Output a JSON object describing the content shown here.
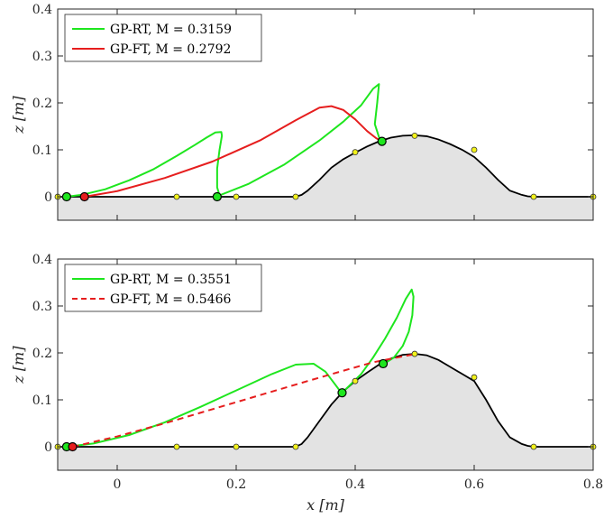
{
  "chart_data": [
    {
      "type": "line",
      "xlim": [
        -0.1,
        0.8
      ],
      "ylim": [
        -0.05,
        0.4
      ],
      "xticks": [],
      "yticks": [
        0,
        0.1,
        0.2,
        0.3,
        0.4
      ],
      "ytick_labels": [
        "0",
        "0.1",
        "0.2",
        "0.3",
        "0.4"
      ],
      "ylabel": "z [m]",
      "xlabel": "",
      "grid": false,
      "legend_position": "top-left",
      "terrain": {
        "x": [
          -0.1,
          0.3,
          0.31,
          0.32,
          0.34,
          0.36,
          0.38,
          0.4,
          0.42,
          0.44,
          0.46,
          0.48,
          0.5,
          0.52,
          0.54,
          0.56,
          0.58,
          0.6,
          0.62,
          0.64,
          0.66,
          0.68,
          0.69,
          0.7,
          0.8
        ],
        "y": [
          0,
          0,
          0.004,
          0.013,
          0.036,
          0.062,
          0.08,
          0.094,
          0.107,
          0.118,
          0.126,
          0.13,
          0.131,
          0.129,
          0.122,
          0.112,
          0.1,
          0.085,
          0.062,
          0.036,
          0.013,
          0.004,
          0.001,
          0,
          0
        ],
        "fill_color": "#e3e3e3",
        "line_color": "#000000",
        "knots_x": [
          -0.1,
          0.1,
          0.2,
          0.3,
          0.4,
          0.5,
          0.6,
          0.7,
          0.8
        ],
        "knots_y": [
          0,
          0,
          0,
          0,
          0.095,
          0.13,
          0.1,
          0,
          0
        ],
        "knot_color": "#f2f21a"
      },
      "series": [
        {
          "name": "GP-RT",
          "M_label": "M = 0.3159",
          "color": "#1ee61e",
          "dash": false,
          "x": [
            -0.085,
            -0.06,
            -0.02,
            0.02,
            0.06,
            0.1,
            0.13,
            0.15,
            0.165,
            0.175,
            0.176,
            0.172,
            0.168,
            0.168,
            0.172,
            0.22,
            0.28,
            0.34,
            0.38,
            0.41,
            0.43,
            0.44,
            0.437,
            0.433,
            0.44,
            0.445
          ],
          "y": [
            0,
            0.004,
            0.016,
            0.035,
            0.058,
            0.087,
            0.11,
            0.126,
            0.137,
            0.138,
            0.13,
            0.1,
            0.06,
            0.02,
            0.003,
            0.027,
            0.068,
            0.12,
            0.16,
            0.195,
            0.23,
            0.24,
            0.2,
            0.155,
            0.127,
            0.118
          ],
          "markers": [
            {
              "x": -0.085,
              "y": 0
            },
            {
              "x": 0.168,
              "y": 0
            },
            {
              "x": 0.445,
              "y": 0.118
            }
          ]
        },
        {
          "name": "GP-FT",
          "M_label": "M = 0.2792",
          "color": "#e61e1e",
          "dash": false,
          "x": [
            -0.055,
            0.0,
            0.08,
            0.16,
            0.24,
            0.3,
            0.34,
            0.36,
            0.38,
            0.4,
            0.42,
            0.435,
            0.445
          ],
          "y": [
            0,
            0.012,
            0.04,
            0.075,
            0.12,
            0.163,
            0.19,
            0.193,
            0.185,
            0.165,
            0.14,
            0.125,
            0.118
          ],
          "markers": [
            {
              "x": -0.055,
              "y": 0
            }
          ]
        }
      ]
    },
    {
      "type": "line",
      "xlim": [
        -0.1,
        0.8
      ],
      "ylim": [
        -0.05,
        0.4
      ],
      "xticks": [
        0,
        0.2,
        0.4,
        0.6,
        0.8
      ],
      "xtick_labels": [
        "0",
        "0.2",
        "0.4",
        "0.6",
        "0.8"
      ],
      "yticks": [
        0,
        0.1,
        0.2,
        0.3,
        0.4
      ],
      "ytick_labels": [
        "0",
        "0.1",
        "0.2",
        "0.3",
        "0.4"
      ],
      "ylabel": "z [m]",
      "xlabel": "x [m]",
      "grid": false,
      "legend_position": "top-left",
      "terrain": {
        "x": [
          -0.1,
          0.3,
          0.31,
          0.32,
          0.34,
          0.36,
          0.38,
          0.4,
          0.42,
          0.44,
          0.46,
          0.48,
          0.5,
          0.52,
          0.54,
          0.56,
          0.58,
          0.6,
          0.62,
          0.64,
          0.66,
          0.68,
          0.69,
          0.7,
          0.8
        ],
        "y": [
          0,
          0,
          0.006,
          0.02,
          0.055,
          0.09,
          0.118,
          0.14,
          0.158,
          0.175,
          0.188,
          0.196,
          0.198,
          0.195,
          0.185,
          0.17,
          0.155,
          0.14,
          0.1,
          0.055,
          0.02,
          0.006,
          0.002,
          0,
          0
        ],
        "fill_color": "#e3e3e3",
        "line_color": "#000000",
        "knots_x": [
          -0.1,
          0.1,
          0.2,
          0.3,
          0.4,
          0.5,
          0.6,
          0.7,
          0.8
        ],
        "knots_y": [
          0,
          0,
          0,
          0,
          0.14,
          0.198,
          0.148,
          0,
          0
        ],
        "knot_color": "#f2f21a"
      },
      "series": [
        {
          "name": "GP-RT",
          "M_label": "M = 0.3551",
          "color": "#1ee61e",
          "dash": false,
          "x": [
            -0.085,
            -0.04,
            0.02,
            0.08,
            0.14,
            0.2,
            0.26,
            0.3,
            0.33,
            0.35,
            0.365,
            0.375,
            0.378,
            0.39,
            0.41,
            0.43,
            0.45,
            0.47,
            0.485,
            0.495,
            0.498,
            0.496,
            0.49,
            0.48,
            0.465,
            0.45,
            0.447
          ],
          "y": [
            0,
            0.007,
            0.025,
            0.052,
            0.085,
            0.12,
            0.155,
            0.175,
            0.177,
            0.16,
            0.135,
            0.118,
            0.115,
            0.13,
            0.155,
            0.19,
            0.23,
            0.275,
            0.315,
            0.335,
            0.32,
            0.28,
            0.245,
            0.215,
            0.19,
            0.178,
            0.177
          ],
          "markers": [
            {
              "x": -0.085,
              "y": 0
            },
            {
              "x": 0.378,
              "y": 0.115
            },
            {
              "x": 0.447,
              "y": 0.177
            }
          ]
        },
        {
          "name": "GP-FT",
          "M_label": "M = 0.5466",
          "color": "#e61e1e",
          "dash": true,
          "x": [
            -0.075,
            0.0,
            0.08,
            0.16,
            0.24,
            0.32,
            0.38,
            0.43,
            0.47,
            0.49,
            0.5
          ],
          "y": [
            0,
            0.022,
            0.05,
            0.08,
            0.11,
            0.14,
            0.162,
            0.18,
            0.19,
            0.195,
            0.197
          ],
          "markers": [
            {
              "x": -0.075,
              "y": 0
            }
          ]
        }
      ]
    }
  ]
}
